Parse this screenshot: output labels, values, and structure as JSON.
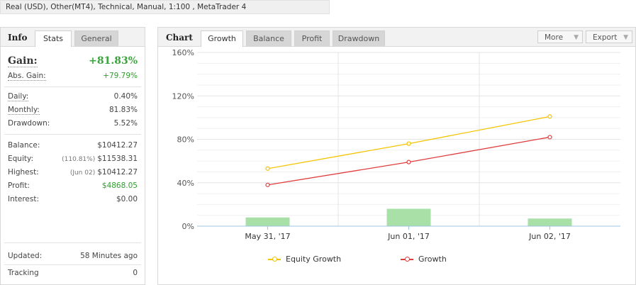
{
  "account_info": "Real (USD), Other(MT4), Technical, Manual, 1:100 , MetaTrader 4",
  "left_panel": {
    "title": "Info",
    "tabs": [
      {
        "label": "Stats",
        "active": true
      },
      {
        "label": "General",
        "active": false
      }
    ],
    "gain": {
      "label": "Gain:",
      "value": "+81.83%"
    },
    "abs_gain": {
      "label": "Abs. Gain:",
      "value": "+79.79%"
    },
    "daily": {
      "label": "Daily:",
      "value": "0.40%"
    },
    "monthly": {
      "label": "Monthly:",
      "value": "81.83%"
    },
    "drawdown": {
      "label": "Drawdown:",
      "value": "5.52%"
    },
    "balance": {
      "label": "Balance:",
      "value": "$10412.27"
    },
    "equity": {
      "label": "Equity:",
      "note": "(110.81%)",
      "value": "$11538.31"
    },
    "highest": {
      "label": "Highest:",
      "note": "(Jun 02)",
      "value": "$10412.27"
    },
    "profit": {
      "label": "Profit:",
      "value": "$4868.05"
    },
    "interest": {
      "label": "Interest:",
      "value": "$0.00"
    },
    "updated": {
      "label": "Updated:",
      "value": "58 Minutes ago"
    },
    "tracking": {
      "label": "Tracking",
      "value": "0"
    }
  },
  "chart_panel": {
    "title": "Chart",
    "tabs": [
      {
        "label": "Growth",
        "active": true
      },
      {
        "label": "Balance",
        "active": false
      },
      {
        "label": "Profit",
        "active": false
      },
      {
        "label": "Drawdown",
        "active": false
      }
    ],
    "more_label": "More",
    "export_label": "Export"
  },
  "colors": {
    "equity_growth": "#f5c400",
    "growth": "#e03c3c",
    "bars": "#a8e0a8",
    "gain_green": "#3aa53a"
  },
  "chart_data": {
    "type": "line",
    "categories": [
      "May 31, '17",
      "Jun 01, '17",
      "Jun 02, '17"
    ],
    "series": [
      {
        "name": "Equity Growth",
        "type": "line",
        "color": "#f5c400",
        "values": [
          53,
          76,
          101
        ]
      },
      {
        "name": "Growth",
        "type": "line",
        "color": "#e03c3c",
        "values": [
          38,
          59,
          82
        ]
      },
      {
        "type": "bar",
        "color": "#a8e0a8",
        "values": [
          8,
          16,
          7
        ]
      }
    ],
    "yticks": [
      "0%",
      "40%",
      "80%",
      "120%",
      "160%"
    ],
    "ylim": [
      0,
      160
    ],
    "grid": true,
    "legend_position": "bottom"
  }
}
